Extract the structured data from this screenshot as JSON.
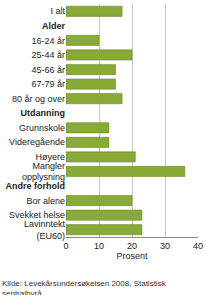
{
  "chart_data": {
    "type": "bar",
    "orientation": "horizontal",
    "categories": [
      "I alt",
      "Alder",
      "16-24 år",
      "25-44 år",
      "45-66 år",
      "67-79 år",
      "80 år og over",
      "Utdanning",
      "Grunnskole",
      "Videregående",
      "Høyere",
      "Mangler\nopplysning",
      "Andre forhold",
      "Bor alene",
      "Svekket helse",
      "Lavinntekt\n(EU60)"
    ],
    "values": [
      17,
      null,
      10,
      20,
      15,
      15,
      17,
      null,
      13,
      13,
      21,
      36,
      null,
      20,
      23,
      23
    ],
    "color": "#8aaa38",
    "xlabel": "Prosent",
    "xlim": [
      0,
      40
    ],
    "xticks": [
      0,
      10,
      20,
      30,
      40
    ],
    "grid": true,
    "annotations": [
      "Kilde: Levekårsundersøkelsen 2008, Statistisk\nsentralbyrå."
    ]
  }
}
